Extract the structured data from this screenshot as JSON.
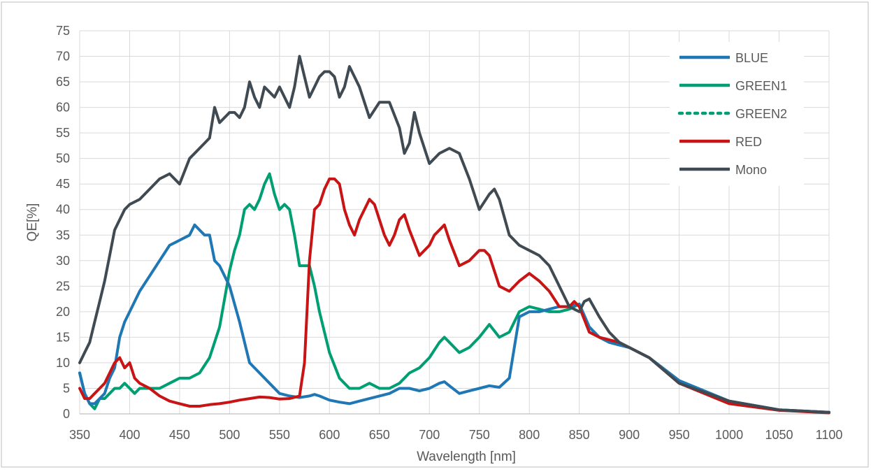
{
  "chart_data": {
    "type": "line",
    "title": "",
    "xlabel": "Wavelength [nm]",
    "ylabel": "QE[%]",
    "xlim": [
      350,
      1100
    ],
    "ylim": [
      0,
      75
    ],
    "x_ticks": [
      "350",
      "400",
      "450",
      "500",
      "550",
      "600",
      "650",
      "700",
      "750",
      "800",
      "850",
      "900",
      "950",
      "1000",
      "1050",
      "1100"
    ],
    "y_ticks": [
      "0",
      "5",
      "10",
      "15",
      "20",
      "25",
      "30",
      "35",
      "40",
      "45",
      "50",
      "55",
      "60",
      "65",
      "70",
      "75"
    ],
    "grid": true,
    "legend_position": "top-right",
    "series": [
      {
        "name": "BLUE",
        "color": "#1f77b4",
        "style": "solid",
        "x": [
          350,
          355,
          360,
          365,
          370,
          375,
          380,
          385,
          390,
          395,
          400,
          410,
          420,
          430,
          440,
          450,
          460,
          465,
          470,
          475,
          480,
          485,
          490,
          500,
          510,
          520,
          530,
          540,
          550,
          560,
          570,
          580,
          585,
          590,
          600,
          610,
          620,
          630,
          640,
          650,
          660,
          670,
          680,
          690,
          700,
          710,
          715,
          720,
          730,
          740,
          750,
          760,
          770,
          780,
          790,
          800,
          810,
          820,
          830,
          840,
          850,
          860,
          870,
          880,
          890,
          900,
          920,
          950,
          1000,
          1050,
          1100
        ],
        "y": [
          8,
          4,
          2,
          2,
          3,
          4,
          7,
          9,
          15,
          18,
          20,
          24,
          27,
          30,
          33,
          34,
          35,
          37,
          36,
          35,
          35,
          30,
          29,
          25,
          18,
          10,
          8,
          6,
          4,
          3.5,
          3.2,
          3.5,
          3.8,
          3.5,
          2.7,
          2.3,
          2,
          2.5,
          3,
          3.5,
          4,
          5,
          5,
          4.5,
          5,
          6,
          6.3,
          5.5,
          4,
          4.5,
          5,
          5.5,
          5.2,
          7,
          19,
          20,
          20,
          20.5,
          21,
          21,
          21.5,
          17,
          15,
          14,
          13.5,
          13,
          11,
          6.5,
          2.5,
          0.8,
          0.3
        ]
      },
      {
        "name": "GREEN1",
        "color": "#009e73",
        "style": "solid",
        "x": [
          350,
          355,
          360,
          365,
          370,
          375,
          380,
          385,
          390,
          395,
          400,
          405,
          410,
          420,
          430,
          440,
          450,
          460,
          470,
          480,
          490,
          500,
          505,
          510,
          515,
          520,
          525,
          530,
          535,
          540,
          545,
          550,
          555,
          560,
          565,
          570,
          575,
          580,
          585,
          590,
          600,
          610,
          620,
          630,
          640,
          650,
          660,
          670,
          680,
          690,
          700,
          710,
          715,
          720,
          730,
          740,
          750,
          760,
          770,
          780,
          790,
          800,
          810,
          820,
          830,
          840,
          850,
          860,
          870,
          880,
          890,
          900,
          920,
          950,
          1000,
          1050,
          1100
        ],
        "y": [
          8,
          4,
          2,
          1,
          3,
          3,
          4,
          5,
          5,
          6,
          5,
          4,
          5,
          5,
          5,
          6,
          7,
          7,
          8,
          11,
          17,
          28,
          32,
          35,
          40,
          41,
          40,
          42,
          45,
          47,
          43,
          40,
          41,
          40,
          35,
          29,
          29,
          29,
          25,
          20,
          12,
          7,
          5,
          5,
          6,
          5,
          5,
          6,
          8,
          9,
          11,
          14,
          15,
          14,
          12,
          13,
          15,
          17.5,
          15,
          16,
          20,
          21,
          20.5,
          20,
          20,
          20.5,
          21.5,
          17,
          15,
          14,
          13.5,
          13,
          11,
          6.5,
          2.5,
          0.8,
          0.3
        ]
      },
      {
        "name": "GREEN2",
        "color": "#009e73",
        "style": "dotted",
        "x": [
          350,
          355,
          360,
          365,
          370,
          375,
          380,
          385,
          390,
          395,
          400,
          405,
          410,
          420,
          430,
          440,
          450,
          460,
          470,
          480,
          490,
          500,
          505,
          510,
          515,
          520,
          525,
          530,
          535,
          540,
          545,
          550,
          555,
          560,
          565,
          570,
          575,
          580,
          585,
          590,
          600,
          610,
          620,
          630,
          640,
          650,
          660,
          670,
          680,
          690,
          700,
          710,
          715,
          720,
          730,
          740,
          750,
          760,
          770,
          780,
          790,
          800,
          810,
          820,
          830,
          840,
          850,
          860,
          870,
          880,
          890,
          900,
          920,
          950,
          1000,
          1050,
          1100
        ],
        "y": [
          8,
          4,
          2,
          1,
          3,
          3,
          4,
          5,
          5,
          6,
          5,
          4,
          5,
          5,
          5,
          6,
          7,
          7,
          8,
          11,
          17,
          28,
          32,
          35,
          40,
          41,
          40,
          42,
          45,
          47,
          43,
          40,
          41,
          40,
          35,
          29,
          29,
          29,
          25,
          20,
          12,
          7,
          5,
          5,
          6,
          5,
          5,
          6,
          8,
          9,
          11,
          14,
          15,
          14,
          12,
          13,
          15,
          17.5,
          15,
          16,
          20,
          21,
          20.5,
          20,
          20,
          20.5,
          21.5,
          17,
          15,
          14,
          13.5,
          13,
          11,
          6.5,
          2.5,
          0.8,
          0.3
        ]
      },
      {
        "name": "RED",
        "color": "#c81414",
        "style": "solid",
        "x": [
          350,
          355,
          360,
          365,
          370,
          375,
          380,
          385,
          390,
          395,
          400,
          405,
          410,
          420,
          430,
          440,
          450,
          460,
          470,
          480,
          490,
          500,
          510,
          520,
          530,
          540,
          550,
          560,
          570,
          575,
          580,
          585,
          590,
          595,
          600,
          605,
          610,
          615,
          620,
          625,
          630,
          640,
          645,
          650,
          655,
          660,
          665,
          670,
          675,
          680,
          690,
          700,
          705,
          710,
          715,
          720,
          730,
          740,
          750,
          755,
          760,
          770,
          780,
          790,
          800,
          810,
          820,
          830,
          840,
          845,
          850,
          860,
          870,
          880,
          890,
          900,
          920,
          950,
          1000,
          1050,
          1100
        ],
        "y": [
          5,
          3,
          3,
          4,
          5,
          6,
          8,
          10,
          11,
          9,
          10,
          7,
          6,
          5,
          3.5,
          2.5,
          2,
          1.5,
          1.5,
          1.8,
          2,
          2.3,
          2.7,
          3,
          3.3,
          3.2,
          2.9,
          3,
          3.5,
          10,
          30,
          40,
          41,
          44,
          46,
          46,
          45,
          40,
          37,
          35,
          38,
          42,
          41,
          38,
          35,
          33,
          35,
          38,
          39,
          36,
          31,
          33,
          35,
          36,
          37,
          34,
          29,
          30,
          32,
          32,
          31,
          25,
          24,
          26,
          27.5,
          26,
          24,
          21,
          21,
          22,
          21,
          16,
          15,
          14.5,
          14,
          13,
          11,
          6,
          2,
          0.7,
          0.2
        ]
      },
      {
        "name": "Mono",
        "color": "#404a52",
        "style": "solid",
        "x": [
          350,
          355,
          360,
          365,
          370,
          375,
          380,
          385,
          390,
          395,
          400,
          410,
          420,
          430,
          440,
          450,
          460,
          470,
          480,
          485,
          490,
          500,
          505,
          510,
          515,
          520,
          525,
          530,
          535,
          540,
          545,
          550,
          555,
          560,
          565,
          570,
          575,
          580,
          585,
          590,
          595,
          600,
          605,
          610,
          615,
          620,
          625,
          630,
          640,
          650,
          660,
          670,
          675,
          680,
          685,
          690,
          700,
          710,
          720,
          730,
          740,
          750,
          760,
          765,
          770,
          780,
          790,
          800,
          810,
          820,
          830,
          840,
          850,
          855,
          860,
          870,
          880,
          890,
          900,
          920,
          950,
          1000,
          1050,
          1100
        ],
        "y": [
          10,
          12,
          14,
          18,
          22,
          26,
          31,
          36,
          38,
          40,
          41,
          42,
          44,
          46,
          47,
          45,
          50,
          52,
          54,
          60,
          57,
          59,
          59,
          58,
          60,
          65,
          62,
          60,
          64,
          63,
          62,
          64,
          62,
          60,
          64,
          70,
          66,
          62,
          64,
          66,
          67,
          67,
          66,
          62,
          64,
          68,
          66,
          64,
          58,
          61,
          61,
          56,
          51,
          53,
          59,
          55,
          49,
          51,
          52,
          51,
          46,
          40,
          43,
          44,
          42,
          35,
          33,
          32,
          31,
          29,
          25,
          21,
          20,
          22,
          22.5,
          19,
          16,
          14,
          13,
          11,
          6,
          2.5,
          0.8,
          0.3
        ]
      }
    ]
  }
}
